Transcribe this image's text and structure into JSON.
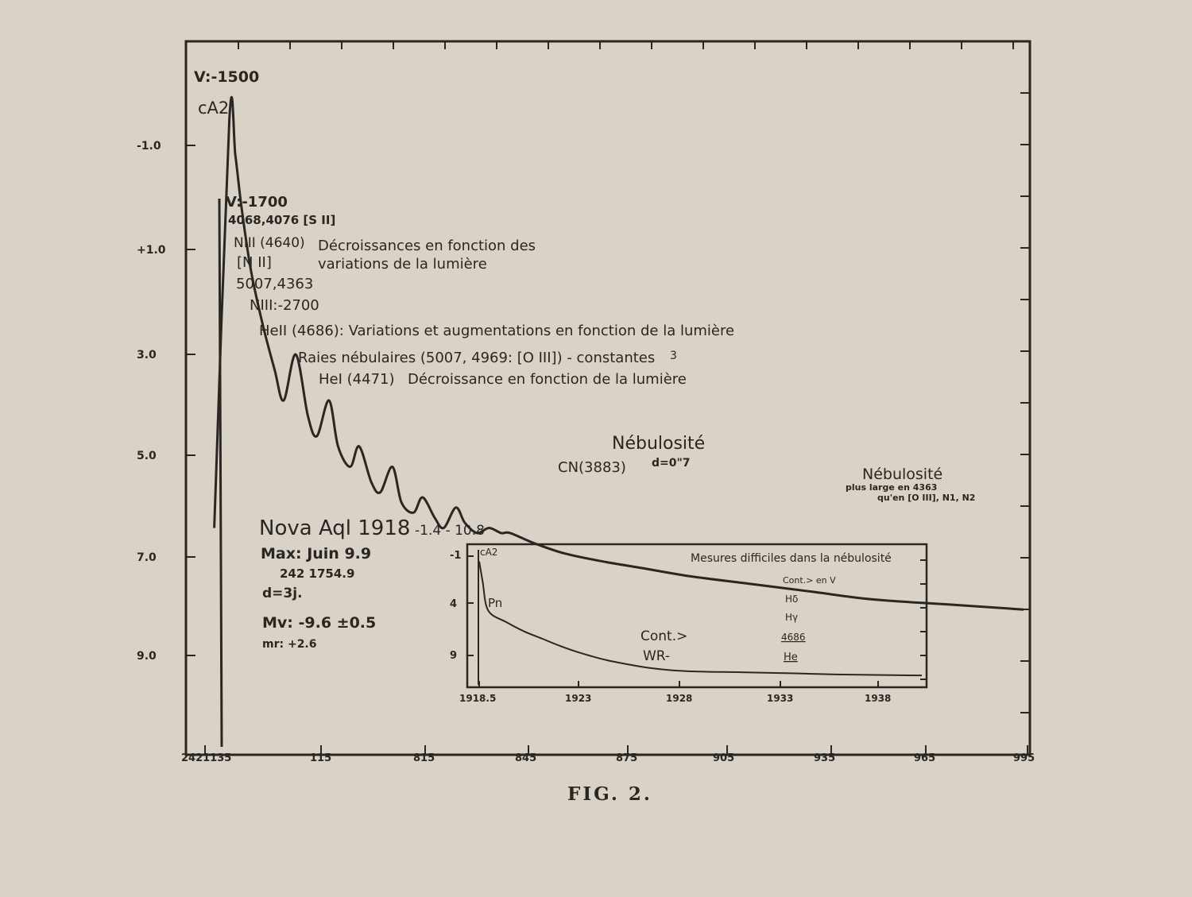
{
  "figure": {
    "caption": "FIG. 2."
  },
  "chart_data": [
    {
      "type": "line",
      "title": "",
      "xlabel": "",
      "ylabel": "",
      "x_tick_labels": [
        "2421135",
        "115",
        "815",
        "845",
        "875",
        "905",
        "935",
        "965",
        "995"
      ],
      "y_tick_labels": [
        "-1.0",
        "+1.0",
        "3.0",
        "5.0",
        "7.0",
        "9.0"
      ],
      "ylim": [
        -2.0,
        11.0
      ],
      "y_inverted": true,
      "grid": false,
      "series": [
        {
          "x": [
            2,
            7,
            9,
            11,
            14,
            18,
            22,
            25,
            29,
            33,
            36,
            40,
            43,
            47,
            50,
            54,
            57,
            61,
            64,
            68,
            71,
            75,
            78,
            82,
            85,
            89,
            93,
            97,
            100,
            108,
            118,
            130,
            145,
            160,
            180,
            200,
            220,
            245,
            270
          ],
          "y": [
            6.5,
            -1.5,
            -0.8,
            0.2,
            1.4,
            2.5,
            3.4,
            4.0,
            3.1,
            4.3,
            4.7,
            4.0,
            4.9,
            5.3,
            4.9,
            5.6,
            5.8,
            5.3,
            6.0,
            6.2,
            5.9,
            6.3,
            6.5,
            6.1,
            6.4,
            6.6,
            6.5,
            6.6,
            6.6,
            6.8,
            7.0,
            7.15,
            7.3,
            7.45,
            7.6,
            7.75,
            7.9,
            8.0,
            8.1
          ]
        }
      ]
    },
    {
      "type": "line",
      "title": "",
      "xlabel": "",
      "ylabel": "",
      "x_tick_labels": [
        "1918.5",
        "1923",
        "1928",
        "1933",
        "1938"
      ],
      "y_tick_labels": [
        "-1",
        "4",
        "9"
      ],
      "xlim": [
        1918.5,
        1943
      ],
      "ylim": [
        -1,
        11
      ],
      "y_inverted": true,
      "grid": false,
      "series": [
        {
          "x": [
            1918.5,
            1918.7,
            1919,
            1920,
            1921,
            1922,
            1923,
            1924,
            1925,
            1926,
            1928,
            1930,
            1933,
            1936,
            1938,
            1940,
            1943
          ],
          "y": [
            -0.5,
            1.5,
            4.2,
            5.3,
            6.2,
            6.9,
            7.6,
            8.2,
            8.7,
            9.1,
            9.7,
            10.0,
            10.1,
            10.2,
            10.3,
            10.35,
            10.4
          ]
        }
      ]
    }
  ],
  "annotations": {
    "v1500": "V:-1500",
    "ca2": "cA2",
    "v1700": "V:-1700",
    "sii": "4068,4076 [S II]",
    "niii": "NIII (4640)",
    "decr1": "Décroissances en fonction des",
    "decr2": "variations de la lumière",
    "nii": "[N II]",
    "o5007": "5007,4363",
    "niii2700": "NIII:-2700",
    "heii": "HeII (4686): Variations et augmentations en fonction de la lumière",
    "raies": "Raies nébulaires (5007, 4969: [O III]) - constantes",
    "raies_num": "3",
    "hei_label": "HeI (4471)",
    "hei_text": "Décroissance en fonction de la lumière",
    "nebulosite1": "Nébulosité",
    "d07": "d=0\"7",
    "cn": "CN(3883)",
    "nebulosite2": "Nébulosité",
    "plus_large": "plus large en 4363",
    "quen": "qu'en [O III], N1, N2"
  },
  "nova": {
    "name": "Nova Aql 1918",
    "range": "-1.4 - 10.8",
    "max": "Max: Juin 9.9",
    "jd": "242 1754.9",
    "d": "d=3j.",
    "mv": "Mv: -9.6 ±0.5",
    "mr": "mr: +2.6"
  },
  "inset": {
    "ca2": "cA2",
    "pn": "Pn",
    "title": "Mesures difficiles dans la nébulosité",
    "cont_v": "Cont.> en V",
    "hd": "Hδ",
    "hg": "Hγ",
    "l4686": "4686",
    "he": "He",
    "cont": "Cont.>",
    "wr": "WR-"
  }
}
